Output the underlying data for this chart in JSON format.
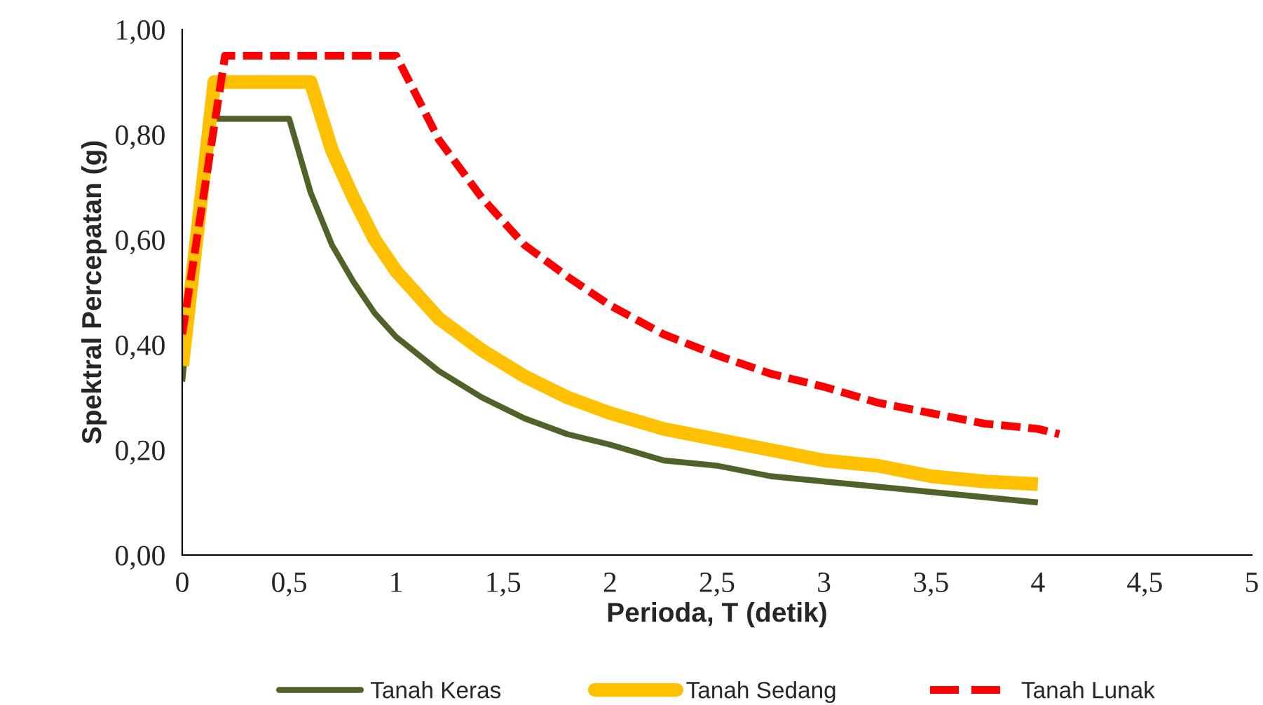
{
  "chart_data": {
    "type": "line",
    "xlabel": "Perioda, T (detik)",
    "ylabel": "Spektral Percepatan (g)",
    "xlim": [
      0,
      5
    ],
    "ylim": [
      0,
      1
    ],
    "xticks": [
      0,
      {
        "value": 0.5,
        "label": "0,5"
      },
      1,
      {
        "value": 1.5,
        "label": "1,5"
      },
      2,
      {
        "value": 2.5,
        "label": "2,5"
      },
      3,
      {
        "value": 3.5,
        "label": "3,5"
      },
      4,
      {
        "value": 4.5,
        "label": "4,5"
      },
      5
    ],
    "yticks": [
      {
        "value": 0,
        "label": "0,00"
      },
      {
        "value": 0.2,
        "label": "0,20"
      },
      {
        "value": 0.4,
        "label": "0,40"
      },
      {
        "value": 0.6,
        "label": "0,60"
      },
      {
        "value": 0.8,
        "label": "0,80"
      },
      {
        "value": 1,
        "label": "1,00"
      }
    ],
    "grid": false,
    "legend": "bottom",
    "series": [
      {
        "name": "Tanah Keras",
        "color": "#4f6228",
        "line_style": "solid",
        "x": [
          0,
          0.13,
          0.5,
          0.6,
          0.7,
          0.8,
          0.9,
          1,
          1.2,
          1.4,
          1.6,
          1.8,
          2,
          2.25,
          2.5,
          2.75,
          3,
          3.25,
          3.5,
          3.75,
          4
        ],
        "values": [
          0.33,
          0.83,
          0.83,
          0.69,
          0.59,
          0.52,
          0.46,
          0.415,
          0.35,
          0.3,
          0.26,
          0.23,
          0.21,
          0.18,
          0.17,
          0.15,
          0.14,
          0.13,
          0.12,
          0.11,
          0.1
        ]
      },
      {
        "name": "Tanah Sedang",
        "color": "#ffc000",
        "line_style": "solid",
        "x": [
          0,
          0.15,
          0.6,
          0.7,
          0.8,
          0.9,
          1,
          1.2,
          1.4,
          1.6,
          1.8,
          2,
          2.25,
          2.5,
          2.75,
          3,
          3.25,
          3.5,
          3.75,
          4
        ],
        "values": [
          0.36,
          0.9,
          0.9,
          0.77,
          0.68,
          0.6,
          0.54,
          0.45,
          0.39,
          0.34,
          0.3,
          0.27,
          0.24,
          0.22,
          0.2,
          0.18,
          0.17,
          0.15,
          0.14,
          0.135
        ]
      },
      {
        "name": "Tanah Lunak",
        "color": "#ff0000",
        "line_style": "dashed",
        "x": [
          0,
          0.2,
          1,
          1.2,
          1.4,
          1.6,
          1.8,
          2,
          2.25,
          2.5,
          2.75,
          3,
          3.25,
          3.5,
          3.75,
          4,
          4.1
        ],
        "values": [
          0.42,
          0.95,
          0.95,
          0.79,
          0.68,
          0.59,
          0.53,
          0.475,
          0.42,
          0.38,
          0.345,
          0.32,
          0.29,
          0.27,
          0.25,
          0.24,
          0.23
        ]
      }
    ]
  }
}
